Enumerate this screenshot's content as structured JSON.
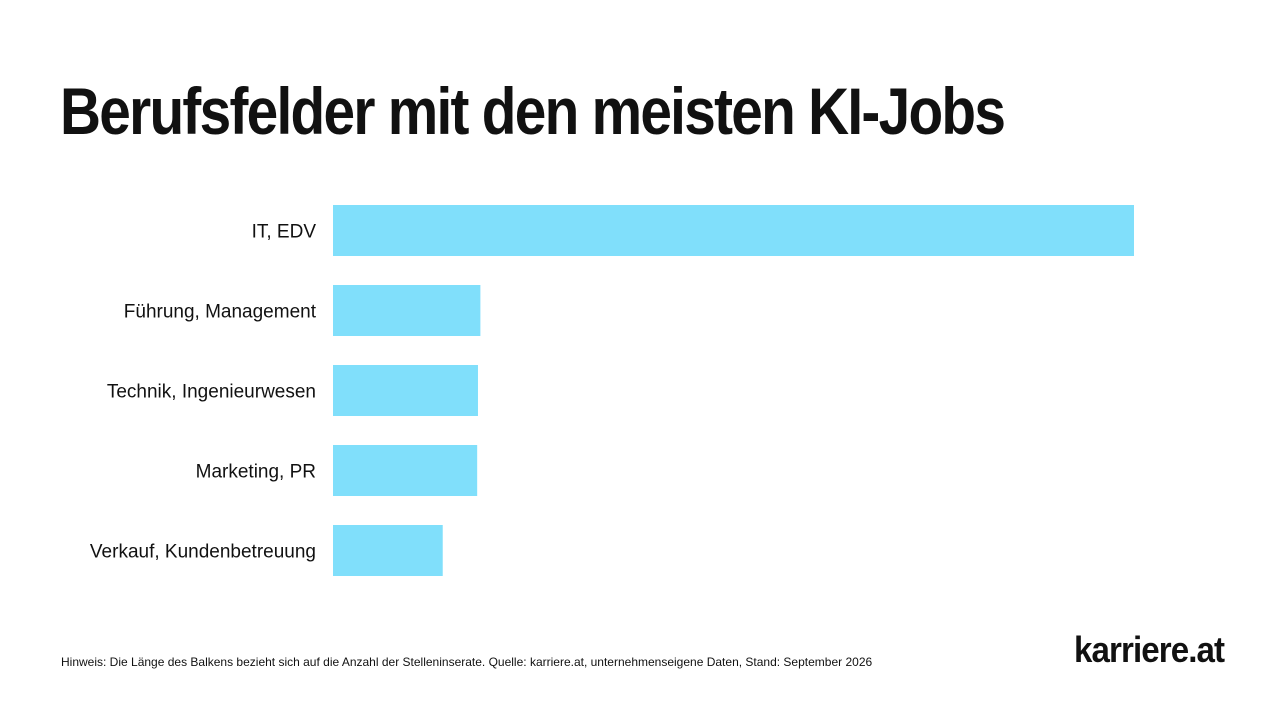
{
  "title": "Berufsfelder mit den meisten KI-Jobs",
  "note": "Hinweis: Die Länge des Balkens bezieht sich auf die Anzahl der Stelleninserate. Quelle: karriere.at, unternehmenseigene Daten, Stand: September 2026",
  "logo": "karriere.at",
  "colors": {
    "bar": "#80DFFB",
    "text": "#111111",
    "background": "#FFFFFF"
  },
  "chart_data": {
    "type": "bar",
    "orientation": "horizontal",
    "title": "Berufsfelder mit den meisten KI-Jobs",
    "categories": [
      "IT, EDV",
      "Führung, Management",
      "Technik, Ingenieurwesen",
      "Marketing, PR",
      "Verkauf, Kundenbetreuung"
    ],
    "values": [
      100,
      18.4,
      18.1,
      18.0,
      13.7
    ],
    "value_unit": "relative bar length (IT, EDV = 100)",
    "xlim": [
      0,
      100
    ],
    "grid": false,
    "legend": "none",
    "axes_visible": false
  }
}
